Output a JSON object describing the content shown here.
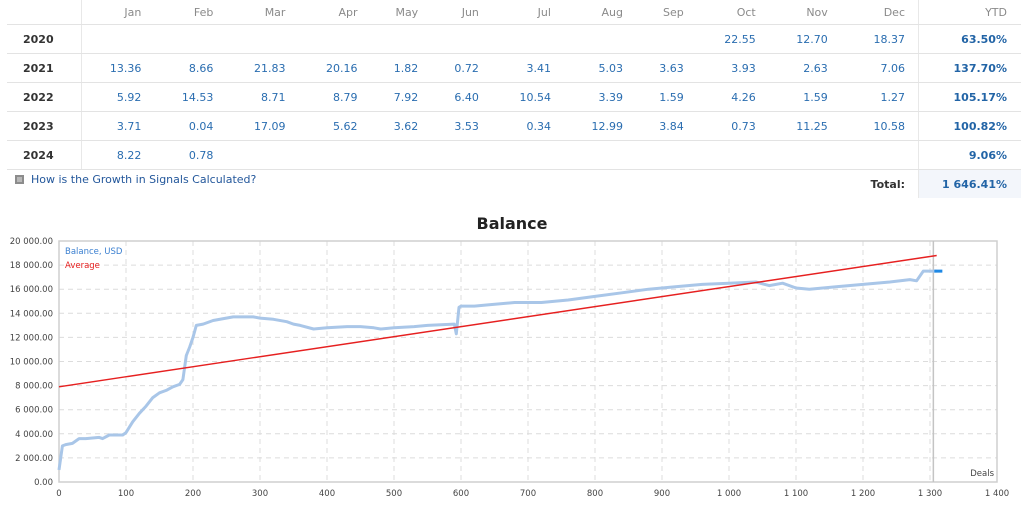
{
  "table": {
    "headers": [
      "",
      "Jan",
      "Feb",
      "Mar",
      "Apr",
      "May",
      "Jun",
      "Jul",
      "Aug",
      "Sep",
      "Oct",
      "Nov",
      "Dec",
      "YTD"
    ],
    "rows": [
      {
        "year": "2020",
        "months": [
          "",
          "",
          "",
          "",
          "",
          "",
          "",
          "",
          "",
          "22.55",
          "12.70",
          "18.37"
        ],
        "ytd": "63.50%"
      },
      {
        "year": "2021",
        "months": [
          "13.36",
          "8.66",
          "21.83",
          "20.16",
          "1.82",
          "0.72",
          "3.41",
          "5.03",
          "3.63",
          "3.93",
          "2.63",
          "7.06"
        ],
        "ytd": "137.70%"
      },
      {
        "year": "2022",
        "months": [
          "5.92",
          "14.53",
          "8.71",
          "8.79",
          "7.92",
          "6.40",
          "10.54",
          "3.39",
          "1.59",
          "4.26",
          "1.59",
          "1.27"
        ],
        "ytd": "105.17%"
      },
      {
        "year": "2023",
        "months": [
          "3.71",
          "0.04",
          "17.09",
          "5.62",
          "3.62",
          "3.53",
          "0.34",
          "12.99",
          "3.84",
          "0.73",
          "11.25",
          "10.58"
        ],
        "ytd": "100.82%"
      },
      {
        "year": "2024",
        "months": [
          "8.22",
          "0.78",
          "",
          "",
          "",
          "",
          "",
          "",
          "",
          "",
          "",
          ""
        ],
        "ytd": "9.06%"
      }
    ],
    "help_link": "How is the Growth in Signals Calculated?",
    "total_label": "Total:",
    "total_value": "1 646.41%"
  },
  "chart_data": {
    "type": "line",
    "title": "Balance",
    "xlabel": "Deals",
    "ylabel": "",
    "xlim": [
      0,
      1400
    ],
    "ylim": [
      0,
      20000
    ],
    "grid": true,
    "legend_position": "top-left",
    "x_ticks": [
      "0",
      "100",
      "200",
      "300",
      "400",
      "500",
      "600",
      "700",
      "800",
      "900",
      "1 000",
      "1 100",
      "1 200",
      "1 300",
      "1 400"
    ],
    "y_ticks": [
      "0.00",
      "2 000.00",
      "4 000.00",
      "6 000.00",
      "8 000.00",
      "10 000.00",
      "12 000.00",
      "14 000.00",
      "16 000.00",
      "18 000.00",
      "20 000.00"
    ],
    "current_marker_x": 1305,
    "series": [
      {
        "name": "Balance, USD",
        "color": "#a9c6e8",
        "x": [
          0,
          5,
          10,
          20,
          30,
          40,
          60,
          65,
          75,
          95,
          100,
          110,
          120,
          130,
          140,
          150,
          160,
          170,
          180,
          185,
          190,
          195,
          200,
          205,
          215,
          230,
          260,
          290,
          300,
          320,
          340,
          350,
          360,
          380,
          400,
          430,
          450,
          470,
          480,
          500,
          530,
          550,
          590,
          593,
          597,
          600,
          620,
          640,
          680,
          720,
          760,
          800,
          840,
          880,
          920,
          960,
          1000,
          1040,
          1060,
          1080,
          1100,
          1120,
          1160,
          1200,
          1240,
          1270,
          1280,
          1290,
          1300,
          1310
        ],
        "values": [
          1000,
          3000,
          3100,
          3200,
          3600,
          3600,
          3700,
          3600,
          3900,
          3900,
          4100,
          5000,
          5700,
          6300,
          7000,
          7400,
          7600,
          7900,
          8100,
          8500,
          10500,
          11200,
          12000,
          13000,
          13100,
          13400,
          13700,
          13700,
          13600,
          13500,
          13300,
          13100,
          13000,
          12700,
          12800,
          12900,
          12900,
          12800,
          12700,
          12800,
          12900,
          13000,
          13100,
          12300,
          14500,
          14600,
          14600,
          14700,
          14900,
          14900,
          15100,
          15400,
          15700,
          16000,
          16200,
          16400,
          16500,
          16600,
          16300,
          16500,
          16100,
          16000,
          16200,
          16400,
          16600,
          16800,
          16700,
          17500,
          17500,
          17500
        ]
      },
      {
        "name": "Average",
        "color": "#e62020",
        "x": [
          0,
          1310
        ],
        "values": [
          7900,
          18800
        ]
      }
    ]
  }
}
